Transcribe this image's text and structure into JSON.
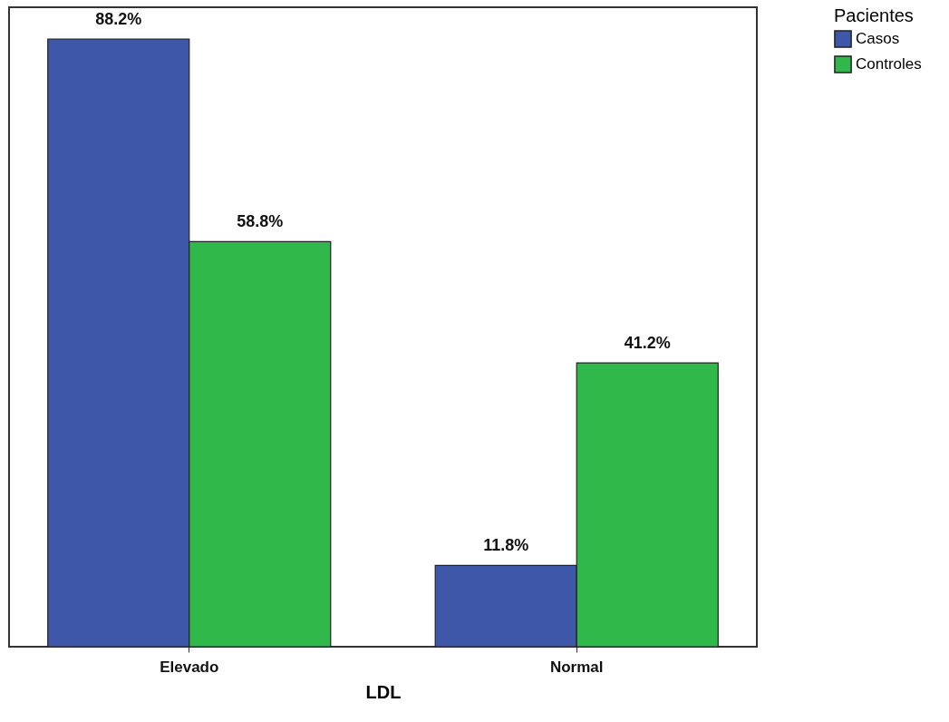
{
  "chart_data": {
    "type": "bar",
    "xlabel": "LDL",
    "legend_title": "Pacientes",
    "categories": [
      "Elevado",
      "Normal"
    ],
    "series": [
      {
        "name": "Casos",
        "color": "#3f57a9",
        "values": [
          88.2,
          11.8
        ],
        "value_labels": [
          "88.2%",
          "11.8%"
        ]
      },
      {
        "name": "Controles",
        "color": "#30b84a",
        "values": [
          58.8,
          41.2
        ],
        "value_labels": [
          "58.8%",
          "41.2%"
        ]
      }
    ],
    "legend": "right",
    "grid": false
  }
}
